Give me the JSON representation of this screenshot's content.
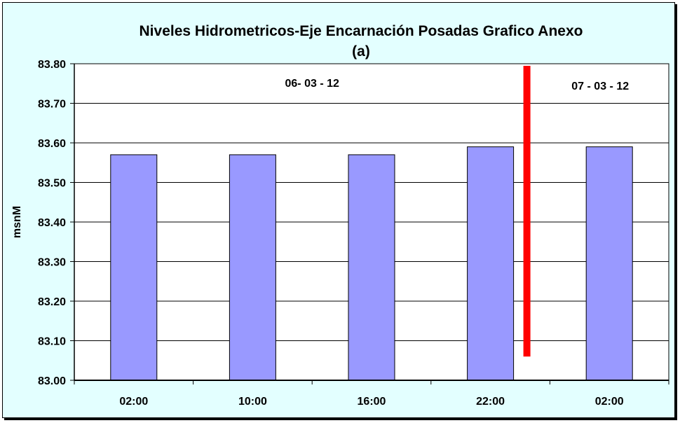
{
  "chart_data": {
    "type": "bar",
    "title": "Niveles Hidrometricos-Eje Encarnación Posadas Grafico Anexo",
    "subtitle": "(a)",
    "ylabel": "msnM",
    "xlabel": "",
    "categories": [
      "02:00",
      "10:00",
      "16:00",
      "22:00",
      "02:00"
    ],
    "values": [
      83.57,
      83.57,
      83.57,
      83.59,
      83.59
    ],
    "ylim": [
      83.0,
      83.8
    ],
    "yticks": [
      "83.00",
      "83.10",
      "83.20",
      "83.30",
      "83.40",
      "83.50",
      "83.60",
      "83.70",
      "83.80"
    ],
    "grid": true,
    "legend": "none",
    "annotations": [
      {
        "text": "06- 03 - 12"
      },
      {
        "text": "07 - 03 - 12"
      }
    ],
    "date_divider": {
      "after_category_index": 3,
      "y_from": 83.06,
      "y_to": 83.8,
      "color": "#ff0000"
    },
    "colors": {
      "bar": "#9999ff",
      "plot_bg": "#ffffff",
      "chart_bg": "#e3ffff",
      "divider": "#ff0000"
    }
  }
}
